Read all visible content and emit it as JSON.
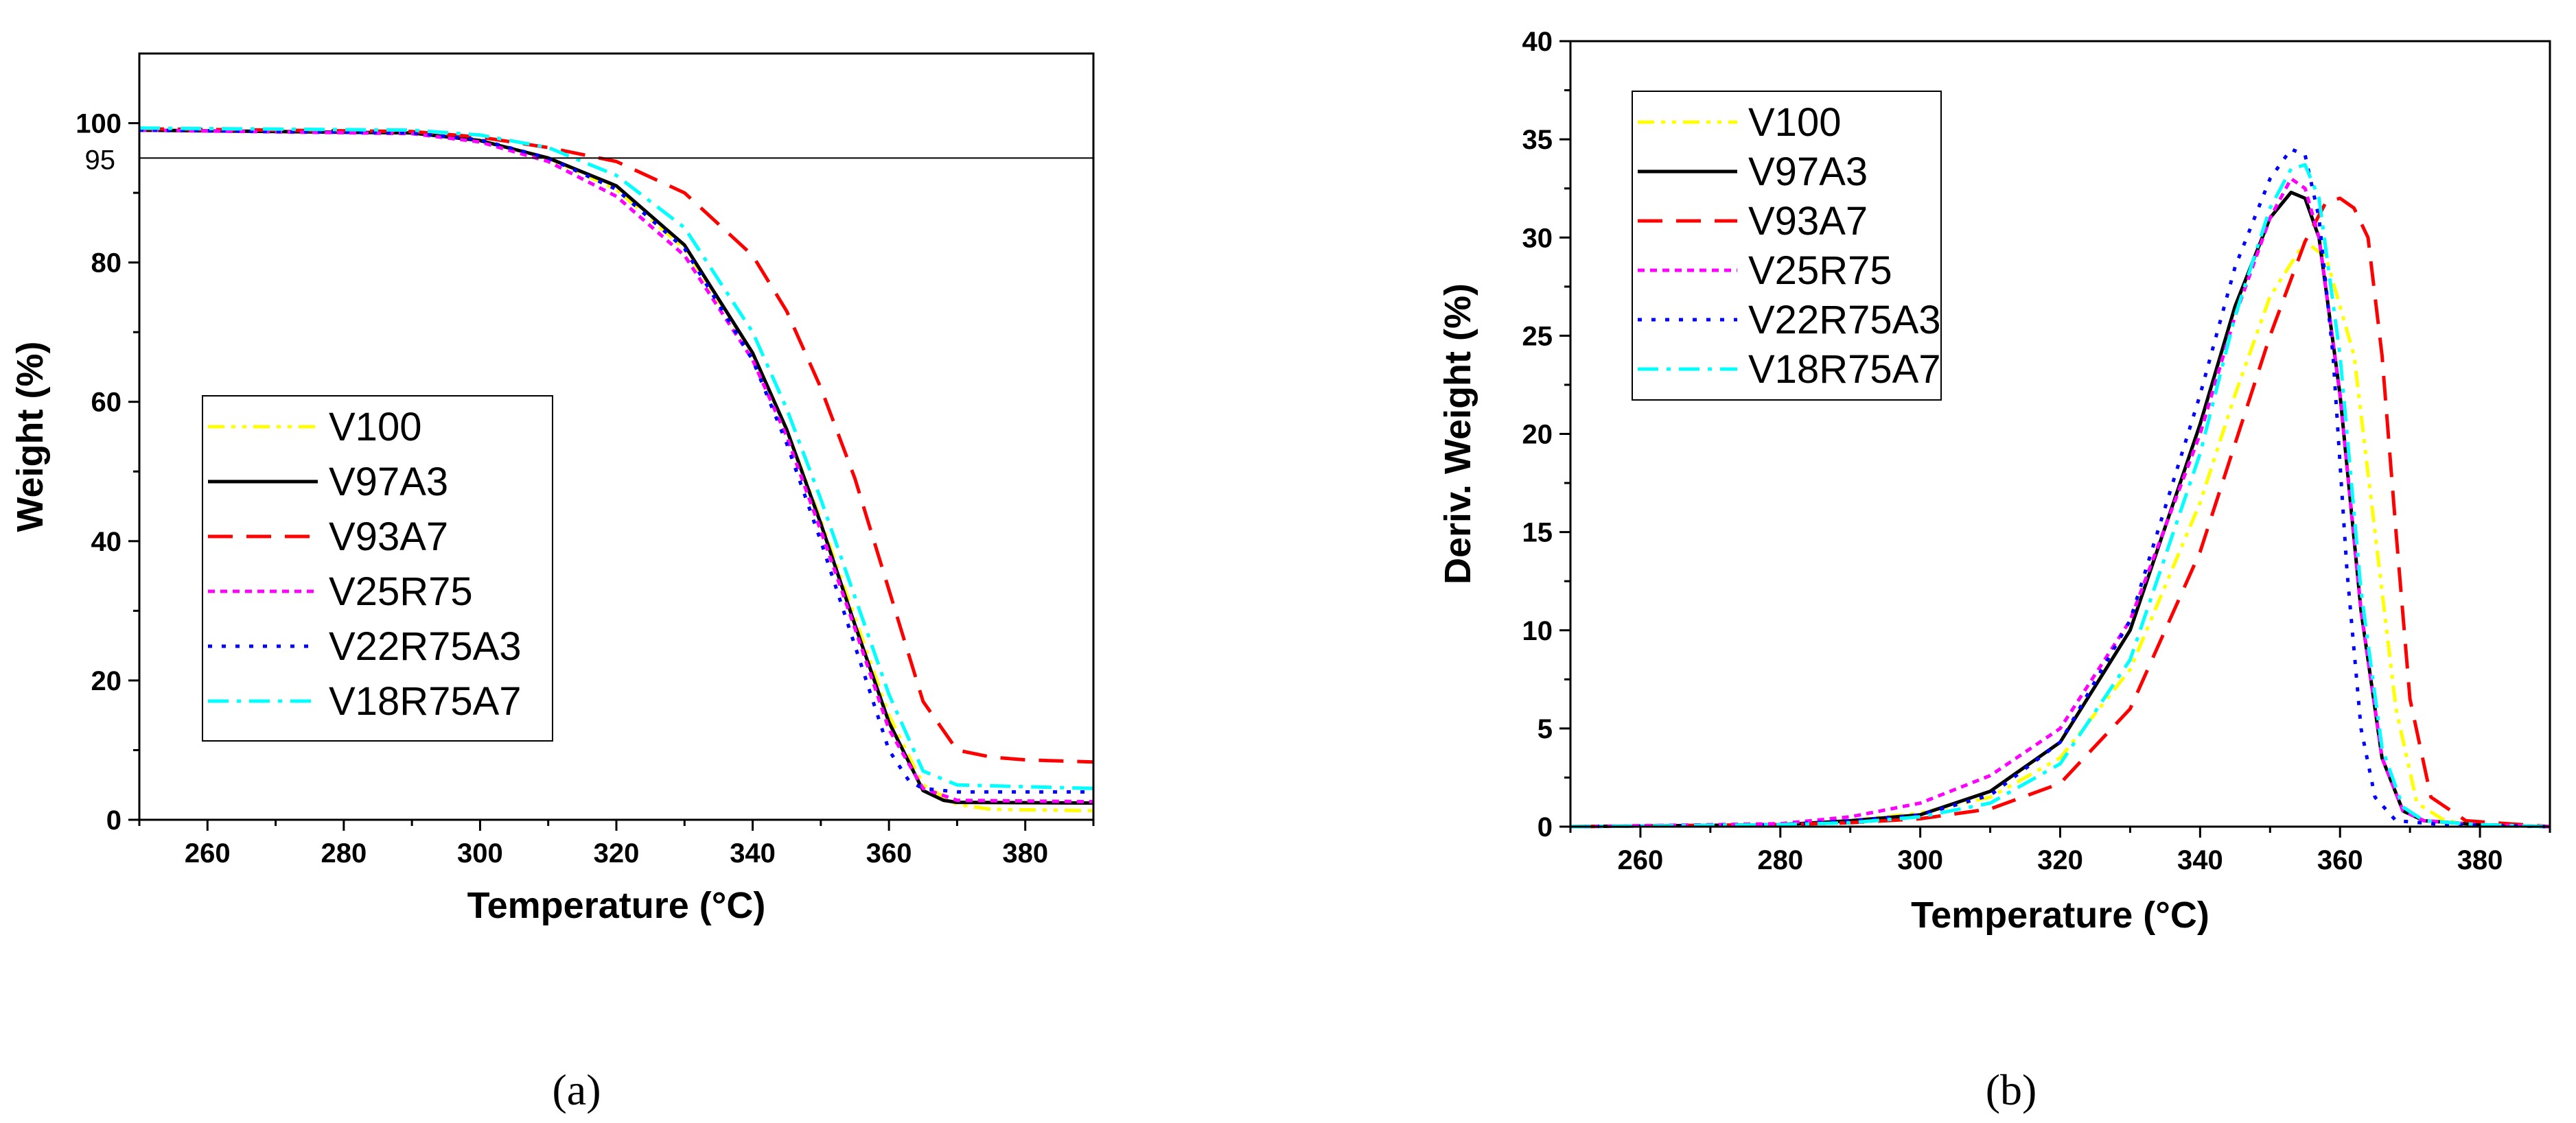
{
  "chart_data": [
    {
      "panel_label": "(a)",
      "type": "line",
      "xlabel": "Temperature (°C)",
      "ylabel": "Weight (%)",
      "xlim": [
        250,
        390
      ],
      "ylim": [
        0,
        110
      ],
      "xticks": [
        260,
        280,
        300,
        320,
        340,
        360,
        380
      ],
      "yticks": [
        0,
        20,
        40,
        60,
        80,
        100
      ],
      "reference_line": {
        "y": 95,
        "label": "95"
      },
      "legend_position": "center-left",
      "series": [
        {
          "name": "V100",
          "color": "#ffff00",
          "dash": "dash-dot-dot",
          "x": [
            250,
            290,
            300,
            310,
            320,
            330,
            340,
            345,
            350,
            355,
            360,
            365,
            370,
            375,
            390
          ],
          "y": [
            99,
            98.6,
            97.5,
            95,
            90.5,
            82,
            67,
            56,
            43,
            29,
            15,
            5,
            2.2,
            1.5,
            1.3
          ]
        },
        {
          "name": "V97A3",
          "color": "#000000",
          "dash": "solid",
          "x": [
            250,
            290,
            300,
            310,
            320,
            330,
            340,
            345,
            350,
            355,
            360,
            365,
            368,
            370,
            390
          ],
          "y": [
            99,
            98.6,
            97.5,
            95,
            91,
            82.5,
            67,
            56,
            42.5,
            28,
            14,
            4.2,
            2.8,
            2.5,
            2.4
          ]
        },
        {
          "name": "V93A7",
          "color": "#ff0000",
          "dash": "dashed",
          "x": [
            250,
            290,
            300,
            310,
            320,
            330,
            340,
            345,
            350,
            355,
            360,
            365,
            370,
            375,
            380,
            390
          ],
          "y": [
            99.2,
            98.8,
            98,
            96.5,
            94.5,
            90,
            81,
            73,
            62,
            49,
            33,
            17,
            10,
            9,
            8.6,
            8.3
          ]
        },
        {
          "name": "V25R75",
          "color": "#ff00ff",
          "dash": "dotted",
          "x": [
            250,
            290,
            300,
            310,
            320,
            330,
            340,
            345,
            350,
            355,
            360,
            365,
            370,
            390
          ],
          "y": [
            99,
            98.5,
            97.3,
            94.5,
            89.5,
            81,
            66,
            55,
            41.5,
            27.5,
            13,
            4.5,
            2.8,
            2.6
          ]
        },
        {
          "name": "V22R75A3",
          "color": "#0000ff",
          "dash": "fine-dotted",
          "x": [
            250,
            290,
            300,
            310,
            320,
            330,
            340,
            345,
            350,
            355,
            360,
            363,
            365,
            370,
            390
          ],
          "y": [
            99,
            98.6,
            97.6,
            95,
            90.5,
            82,
            66,
            54,
            40,
            25,
            10,
            5.5,
            4.5,
            4,
            4
          ]
        },
        {
          "name": "V18R75A7",
          "color": "#00ffff",
          "dash": "dash-dot",
          "x": [
            250,
            290,
            300,
            310,
            320,
            330,
            340,
            345,
            350,
            355,
            360,
            365,
            370,
            390
          ],
          "y": [
            99.3,
            99,
            98.3,
            96.5,
            92.5,
            85,
            70,
            59,
            46,
            32,
            18,
            7,
            5,
            4.5
          ]
        }
      ]
    },
    {
      "panel_label": "(b)",
      "type": "line",
      "xlabel": "Temperature (°C)",
      "ylabel": "Deriv. Weight (%)",
      "xlim": [
        250,
        390
      ],
      "ylim": [
        0,
        40
      ],
      "xticks": [
        260,
        280,
        300,
        320,
        340,
        360,
        380
      ],
      "yticks": [
        0,
        5,
        10,
        15,
        20,
        25,
        30,
        35,
        40
      ],
      "legend_position": "top-left",
      "series": [
        {
          "name": "V100",
          "color": "#ffff00",
          "dash": "dash-dot-dot",
          "x": [
            250,
            280,
            290,
            300,
            310,
            320,
            330,
            340,
            345,
            350,
            355,
            358,
            362,
            365,
            368,
            371,
            375,
            380,
            390
          ],
          "y": [
            0,
            0.1,
            0.3,
            0.7,
            1.5,
            3.5,
            8,
            16.5,
            22,
            27,
            29.8,
            29,
            24,
            15,
            6,
            1.2,
            0.3,
            0.1,
            0
          ]
        },
        {
          "name": "V97A3",
          "color": "#000000",
          "dash": "solid",
          "x": [
            250,
            280,
            290,
            300,
            310,
            320,
            330,
            340,
            345,
            350,
            353,
            355,
            357,
            360,
            363,
            366,
            369,
            372,
            380,
            390
          ],
          "y": [
            0,
            0.1,
            0.3,
            0.6,
            1.8,
            4.3,
            10,
            20.5,
            26.5,
            31,
            32.3,
            32,
            30,
            22,
            11,
            3.5,
            0.8,
            0.3,
            0.1,
            0
          ]
        },
        {
          "name": "V93A7",
          "color": "#ff0000",
          "dash": "dashed",
          "x": [
            250,
            280,
            290,
            300,
            310,
            320,
            330,
            340,
            345,
            350,
            355,
            358,
            360,
            362,
            364,
            366,
            368,
            370,
            373,
            378,
            390
          ],
          "y": [
            0,
            0.1,
            0.2,
            0.4,
            0.9,
            2.2,
            6,
            14,
            19.5,
            25,
            29.8,
            31.8,
            32,
            31.5,
            30,
            24,
            15,
            6.5,
            1.5,
            0.3,
            0
          ]
        },
        {
          "name": "V25R75",
          "color": "#ff00ff",
          "dash": "dotted",
          "x": [
            250,
            280,
            290,
            300,
            310,
            320,
            330,
            340,
            345,
            350,
            353,
            355,
            357,
            360,
            363,
            366,
            369,
            372,
            380,
            390
          ],
          "y": [
            0,
            0.15,
            0.5,
            1.2,
            2.6,
            5,
            10.5,
            20,
            26,
            31,
            33,
            32.5,
            30,
            22,
            11,
            3.5,
            0.8,
            0.3,
            0.1,
            0
          ]
        },
        {
          "name": "V22R75A3",
          "color": "#0000ff",
          "dash": "fine-dotted",
          "x": [
            250,
            280,
            290,
            300,
            310,
            320,
            330,
            340,
            345,
            350,
            353,
            355,
            357,
            359,
            361,
            363,
            365,
            368,
            375,
            390
          ],
          "y": [
            0,
            0.1,
            0.3,
            0.6,
            1.6,
            4.3,
            10.5,
            22,
            28.5,
            33,
            34.5,
            34.2,
            31,
            24,
            13,
            5,
            1.5,
            0.3,
            0.1,
            0
          ]
        },
        {
          "name": "V18R75A7",
          "color": "#00ffff",
          "dash": "dash-dot",
          "x": [
            250,
            280,
            290,
            300,
            310,
            320,
            330,
            340,
            345,
            350,
            353,
            355,
            357,
            360,
            363,
            366,
            369,
            372,
            380,
            390
          ],
          "y": [
            0,
            0.1,
            0.2,
            0.5,
            1.2,
            3.2,
            8.5,
            19,
            26,
            31.5,
            33.5,
            33.7,
            32,
            24,
            12,
            4,
            1,
            0.3,
            0.1,
            0
          ]
        }
      ]
    }
  ]
}
